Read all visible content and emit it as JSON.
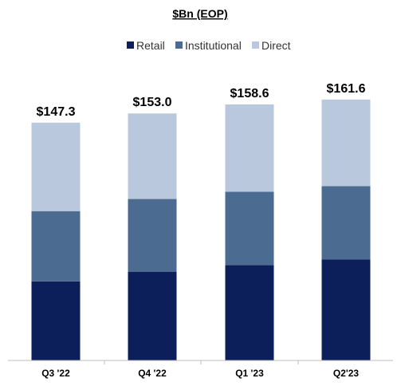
{
  "chart_data": {
    "type": "bar",
    "stacked": true,
    "title": "$Bn (EOP)",
    "categories": [
      "Q3 '22",
      "Q4 '22",
      "Q1 '23",
      "Q2'23"
    ],
    "series": [
      {
        "name": "Retail",
        "values": [
          49.0,
          55.0,
          59.0,
          62.5
        ],
        "color": "#0c1f5a"
      },
      {
        "name": "Institutional",
        "values": [
          43.5,
          45.0,
          45.5,
          45.5
        ],
        "color": "#4b6b91"
      },
      {
        "name": "Direct",
        "values": [
          54.8,
          53.0,
          54.1,
          53.6
        ],
        "color": "#b9c8dc"
      }
    ],
    "totals": [
      "$147.3",
      "$153.0",
      "$158.6",
      "$161.6"
    ],
    "ylim": [
      0,
      163
    ],
    "grid": false,
    "legend": "top-center"
  }
}
